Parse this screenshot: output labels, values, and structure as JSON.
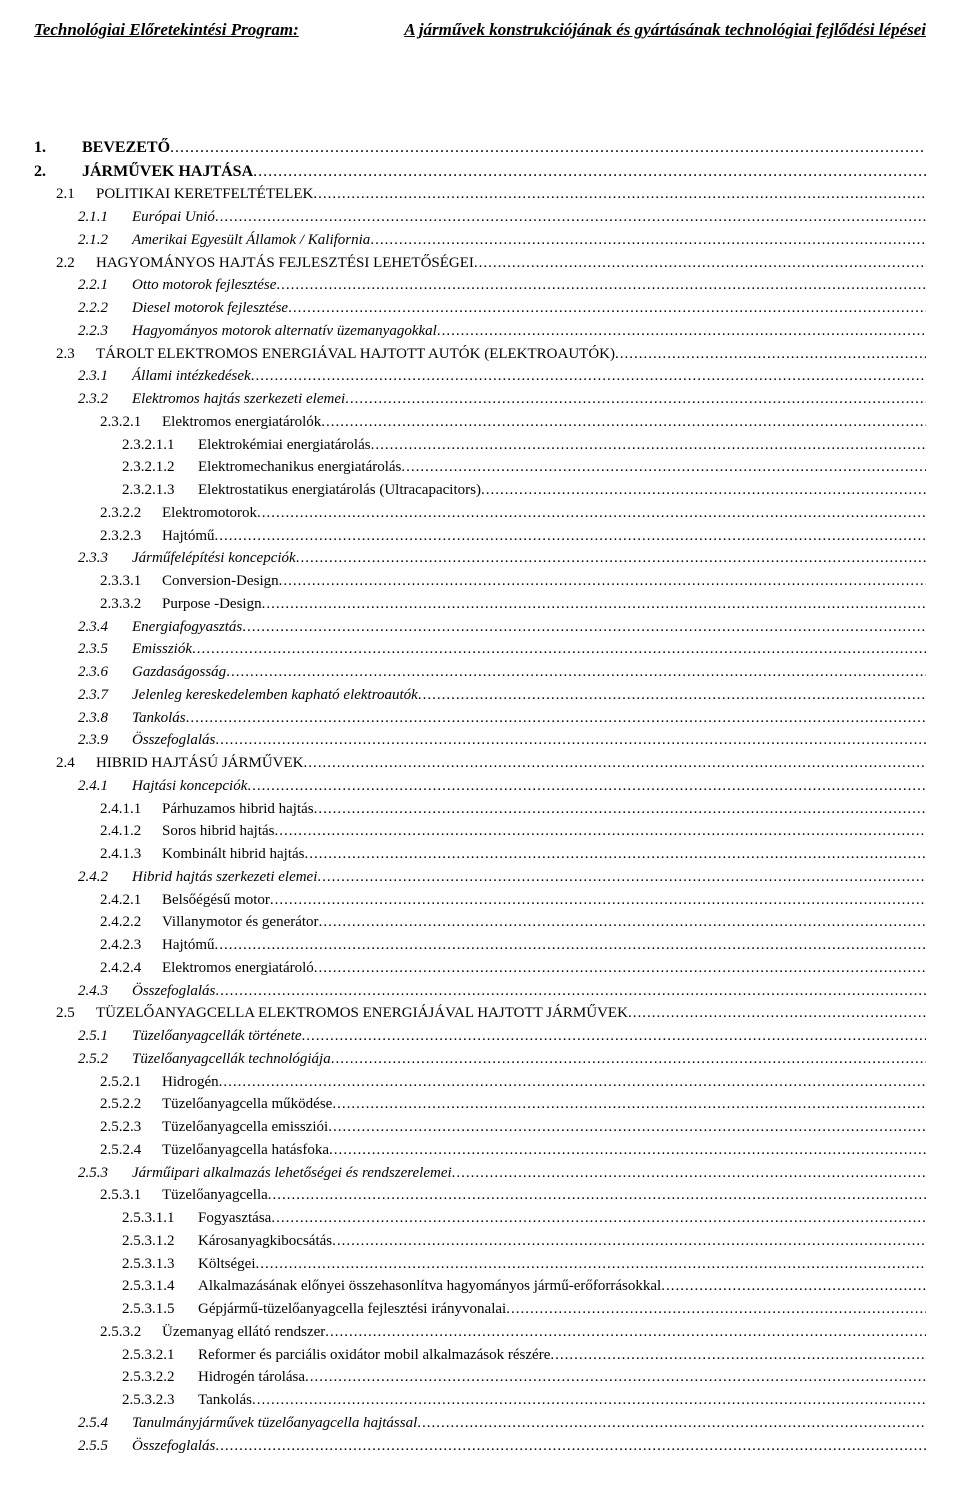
{
  "header": {
    "left": "Technológiai Előretekintési Program:",
    "right": "A járművek konstrukciójának és gyártásának technológiai fejlődési lépései"
  },
  "toc": [
    {
      "lvl": 1,
      "num": "1.",
      "title": "BEVEZETŐ",
      "bold": true
    },
    {
      "lvl": 1,
      "num": "2.",
      "title": "JÁRMŰVEK HAJTÁSA",
      "bold": true
    },
    {
      "lvl": 2,
      "num": "2.1",
      "title": "POLITIKAI KERETFELTÉTELEK",
      "smallcaps": true
    },
    {
      "lvl": 3,
      "num": "2.1.1",
      "title": "Európai Unió",
      "italic": true
    },
    {
      "lvl": 3,
      "num": "2.1.2",
      "title": "Amerikai Egyesült Államok / Kalifornia",
      "italic": true
    },
    {
      "lvl": 2,
      "num": "2.2",
      "title": "HAGYOMÁNYOS HAJTÁS FEJLESZTÉSI LEHETŐSÉGEI",
      "smallcaps": true
    },
    {
      "lvl": 3,
      "num": "2.2.1",
      "title": "Otto motorok fejlesztése",
      "italic": true
    },
    {
      "lvl": 3,
      "num": "2.2.2",
      "title": "Diesel motorok fejlesztése",
      "italic": true
    },
    {
      "lvl": 3,
      "num": "2.2.3",
      "title": "Hagyományos motorok alternatív üzemanyagokkal",
      "italic": true
    },
    {
      "lvl": 2,
      "num": "2.3",
      "title": "TÁROLT ELEKTROMOS ENERGIÁVAL HAJTOTT AUTÓK (ELEKTROAUTÓK)",
      "smallcaps": true
    },
    {
      "lvl": 3,
      "num": "2.3.1",
      "title": "Állami intézkedések",
      "italic": true
    },
    {
      "lvl": 3,
      "num": "2.3.2",
      "title": "Elektromos hajtás szerkezeti elemei",
      "italic": true
    },
    {
      "lvl": 4,
      "num": "2.3.2.1",
      "title": "Elektromos energiatárolók"
    },
    {
      "lvl": 5,
      "num": "2.3.2.1.1",
      "title": "Elektrokémiai energiatárolás"
    },
    {
      "lvl": 5,
      "num": "2.3.2.1.2",
      "title": "Elektromechanikus energiatárolás"
    },
    {
      "lvl": 5,
      "num": "2.3.2.1.3",
      "title": "Elektrostatikus energiatárolás (Ultracapacitors)"
    },
    {
      "lvl": 4,
      "num": "2.3.2.2",
      "title": "Elektromotorok"
    },
    {
      "lvl": 4,
      "num": "2.3.2.3",
      "title": "Hajtómű"
    },
    {
      "lvl": 3,
      "num": "2.3.3",
      "title": "Járműfelépítési koncepciók",
      "italic": true
    },
    {
      "lvl": 4,
      "num": "2.3.3.1",
      "title": "Conversion-Design"
    },
    {
      "lvl": 4,
      "num": "2.3.3.2",
      "title": "Purpose -Design"
    },
    {
      "lvl": 3,
      "num": "2.3.4",
      "title": "Energiafogyasztás",
      "italic": true
    },
    {
      "lvl": 3,
      "num": "2.3.5",
      "title": "Emissziók",
      "italic": true
    },
    {
      "lvl": 3,
      "num": "2.3.6",
      "title": "Gazdaságosság",
      "italic": true
    },
    {
      "lvl": 3,
      "num": "2.3.7",
      "title": "Jelenleg kereskedelemben kapható elektroautók",
      "italic": true
    },
    {
      "lvl": 3,
      "num": "2.3.8",
      "title": "Tankolás",
      "italic": true
    },
    {
      "lvl": 3,
      "num": "2.3.9",
      "title": "Összefoglalás",
      "italic": true
    },
    {
      "lvl": 2,
      "num": "2.4",
      "title": "HIBRID HAJTÁSÚ JÁRMŰVEK",
      "smallcaps": true
    },
    {
      "lvl": 3,
      "num": "2.4.1",
      "title": "Hajtási koncepciók",
      "italic": true
    },
    {
      "lvl": 4,
      "num": "2.4.1.1",
      "title": "Párhuzamos hibrid hajtás"
    },
    {
      "lvl": 4,
      "num": "2.4.1.2",
      "title": "Soros hibrid hajtás"
    },
    {
      "lvl": 4,
      "num": "2.4.1.3",
      "title": "Kombinált hibrid hajtás"
    },
    {
      "lvl": 3,
      "num": "2.4.2",
      "title": "Hibrid hajtás szerkezeti elemei",
      "italic": true
    },
    {
      "lvl": 4,
      "num": "2.4.2.1",
      "title": "Belsőégésű motor"
    },
    {
      "lvl": 4,
      "num": "2.4.2.2",
      "title": "Villanymotor és generátor"
    },
    {
      "lvl": 4,
      "num": "2.4.2.3",
      "title": "Hajtómű"
    },
    {
      "lvl": 4,
      "num": "2.4.2.4",
      "title": "Elektromos energiatároló"
    },
    {
      "lvl": 3,
      "num": "2.4.3",
      "title": "Összefoglalás",
      "italic": true
    },
    {
      "lvl": 2,
      "num": "2.5",
      "title": "TÜZELŐANYAGCELLA ELEKTROMOS ENERGIÁJÁVAL HAJTOTT JÁRMŰVEK",
      "smallcaps": true
    },
    {
      "lvl": 3,
      "num": "2.5.1",
      "title": "Tüzelőanyagcellák története",
      "italic": true
    },
    {
      "lvl": 3,
      "num": "2.5.2",
      "title": "Tüzelőanyagcellák technológiája",
      "italic": true
    },
    {
      "lvl": 4,
      "num": "2.5.2.1",
      "title": "Hidrogén"
    },
    {
      "lvl": 4,
      "num": "2.5.2.2",
      "title": "Tüzelőanyagcella működése"
    },
    {
      "lvl": 4,
      "num": "2.5.2.3",
      "title": "Tüzelőanyagcella emissziói"
    },
    {
      "lvl": 4,
      "num": "2.5.2.4",
      "title": "Tüzelőanyagcella hatásfoka"
    },
    {
      "lvl": 3,
      "num": "2.5.3",
      "title": "Járműipari alkalmazás lehetőségei és rendszerelemei",
      "italic": true
    },
    {
      "lvl": 4,
      "num": "2.5.3.1",
      "title": "Tüzelőanyagcella"
    },
    {
      "lvl": 5,
      "num": "2.5.3.1.1",
      "title": "Fogyasztása"
    },
    {
      "lvl": 5,
      "num": "2.5.3.1.2",
      "title": "Károsanyagkibocsátás"
    },
    {
      "lvl": 5,
      "num": "2.5.3.1.3",
      "title": "Költségei"
    },
    {
      "lvl": 5,
      "num": "2.5.3.1.4",
      "title": "Alkalmazásának előnyei összehasonlítva hagyományos jármű-erőforrásokkal"
    },
    {
      "lvl": 5,
      "num": "2.5.3.1.5",
      "title": "Gépjármű-tüzelőanyagcella fejlesztési irányvonalai"
    },
    {
      "lvl": 4,
      "num": "2.5.3.2",
      "title": "Üzemanyag ellátó rendszer"
    },
    {
      "lvl": 5,
      "num": "2.5.3.2.1",
      "title": "Reformer és parciális oxidátor mobil alkalmazások részére"
    },
    {
      "lvl": 5,
      "num": "2.5.3.2.2",
      "title": "Hidrogén tárolása"
    },
    {
      "lvl": 5,
      "num": "2.5.3.2.3",
      "title": "Tankolás"
    },
    {
      "lvl": 3,
      "num": "2.5.4",
      "title": "Tanulmányjárművek tüzelőanyagcella hajtással",
      "italic": true
    },
    {
      "lvl": 3,
      "num": "2.5.5",
      "title": "Összefoglalás",
      "italic": true
    }
  ]
}
